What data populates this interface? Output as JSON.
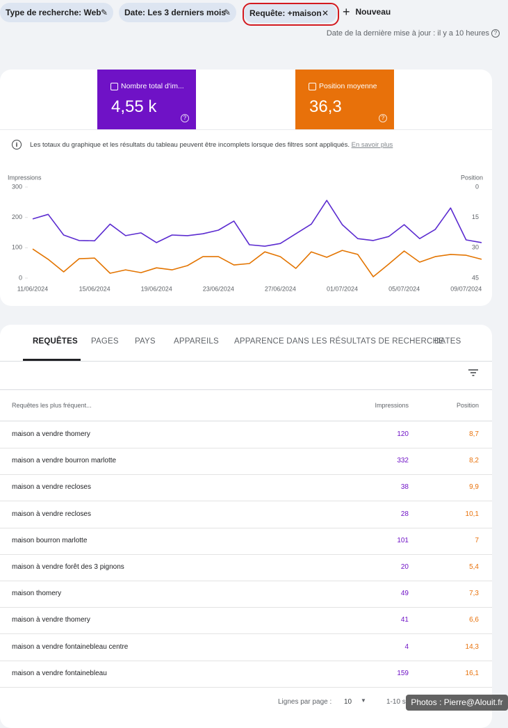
{
  "filters": [
    "Type de recherche: Web",
    "Date: Les 3 derniers mois",
    "Requête: +maison"
  ],
  "new_button": "Nouveau",
  "last_update": "Date de la dernière mise à jour : il y a 10 heures",
  "metrics": [
    {
      "label": "Nombre total d'im...",
      "value": "4,55 k",
      "color": "#6f12c6"
    },
    {
      "label": "Position moyenne",
      "value": "36,3",
      "color": "#e8710a"
    }
  ],
  "notice": "Les totaux du graphique et les résultats du tableau peuvent être incomplets lorsque des filtres sont appliqués.",
  "notice_link": "En savoir plus",
  "chart_data": {
    "type": "line",
    "y_label": "Impressions",
    "y2_label": "Position",
    "categories": [
      "11/06/2024",
      null,
      null,
      null,
      "15/06/2024",
      null,
      null,
      null,
      "19/06/2024",
      null,
      null,
      null,
      "23/06/2024",
      null,
      null,
      null,
      "27/06/2024",
      null,
      null,
      null,
      "01/07/2024",
      null,
      null,
      null,
      "05/07/2024",
      null,
      null,
      null,
      "09/07/2024",
      null
    ],
    "series": [
      {
        "color": "#5b2bd0",
        "values": [
          195,
          210,
          142,
          124,
          123,
          178,
          140,
          149,
          117,
          142,
          140,
          146,
          158,
          188,
          110,
          105,
          114,
          146,
          178,
          256,
          176,
          130,
          124,
          137,
          176,
          130,
          160,
          231,
          126,
          117
        ]
      },
      {
        "color": "#e37400",
        "axis": "y2",
        "values": [
          30.6,
          35.7,
          41.9,
          35.4,
          35.1,
          42.6,
          40.9,
          42.3,
          39.9,
          40.9,
          38.8,
          34.4,
          34.4,
          38.5,
          37.8,
          32,
          34.4,
          40.2,
          32,
          34.7,
          31.3,
          33.3,
          44.3,
          38.1,
          31.6,
          37.1,
          34.4,
          33.3,
          33.7,
          35.7
        ]
      }
    ],
    "ylim": [
      0,
      300
    ],
    "yticks": [
      0,
      100,
      200,
      300
    ],
    "y2lim": [
      45,
      0
    ],
    "y2ticks": [
      0,
      15,
      30,
      45
    ],
    "grid": false
  },
  "tabs": [
    "REQUÊTES",
    "PAGES",
    "PAYS",
    "APPAREILS",
    "APPARENCE DANS LES RÉSULTATS DE RECHERCHE",
    "DATES"
  ],
  "table": {
    "header": [
      "Requêtes les plus fréquent...",
      "Impressions",
      "Position"
    ],
    "rows": [
      [
        "maison a vendre thomery",
        120,
        "8,7"
      ],
      [
        "maison a vendre bourron marlotte",
        332,
        "8,2"
      ],
      [
        "maison a vendre recloses",
        38,
        "9,9"
      ],
      [
        "maison à vendre recloses",
        28,
        "10,1"
      ],
      [
        "maison bourron marlotte",
        101,
        "7"
      ],
      [
        "maison à vendre forêt des 3 pignons",
        20,
        "5,4"
      ],
      [
        "maison thomery",
        49,
        "7,3"
      ],
      [
        "maison à vendre thomery",
        41,
        "6,6"
      ],
      [
        "maison a vendre fontainebleau centre",
        4,
        "14,3"
      ],
      [
        "maison a vendre fontainebleau",
        159,
        "16,1"
      ]
    ]
  },
  "pagination": {
    "rows_label": "Lignes par page :",
    "rows_value": "10",
    "range": "1-10 s"
  },
  "watermark": "Photos : Pierre@Alouit.fr"
}
